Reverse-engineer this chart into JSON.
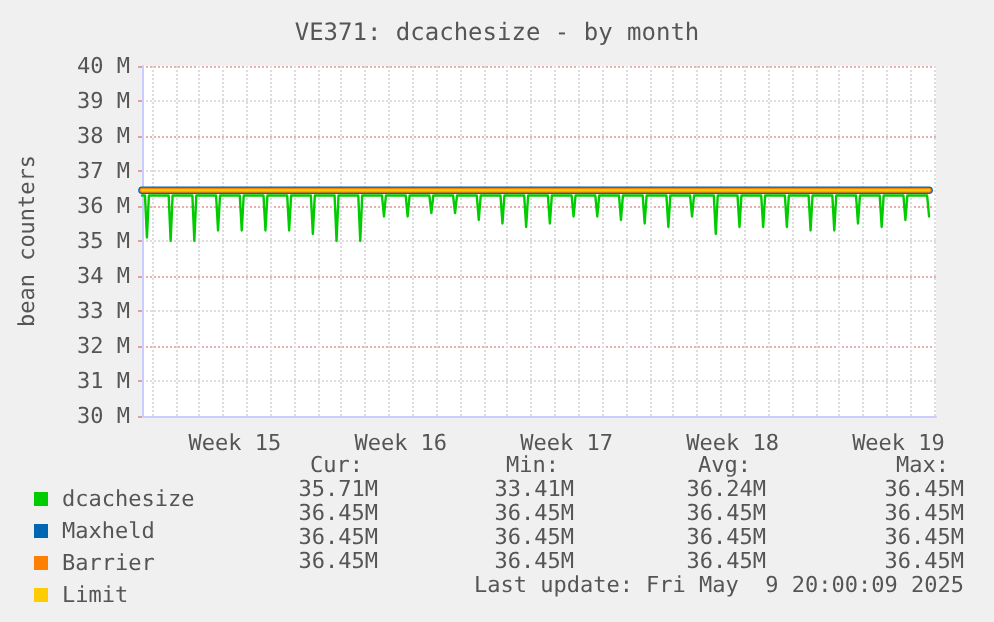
{
  "chart_data": {
    "type": "line",
    "title": "VE371: dcachesize - by month",
    "ylabel": "bean counters",
    "xlim": [
      "2025-04-06T14:00",
      "2025-05-10T02:00"
    ],
    "xticks": [
      {
        "value": "2025-04-10T12:00",
        "label": "Week 15"
      },
      {
        "value": "2025-04-17T12:00",
        "label": "Week 16"
      },
      {
        "value": "2025-04-24T12:00",
        "label": "Week 17"
      },
      {
        "value": "2025-05-01T12:00",
        "label": "Week 18"
      },
      {
        "value": "2025-05-08T12:00",
        "label": "Week 19"
      }
    ],
    "ylim": [
      30,
      40
    ],
    "yticks": [
      {
        "value": 30,
        "label": "30 M"
      },
      {
        "value": 31,
        "label": "31 M"
      },
      {
        "value": 32,
        "label": "32 M"
      },
      {
        "value": 33,
        "label": "33 M"
      },
      {
        "value": 34,
        "label": "34 M"
      },
      {
        "value": 35,
        "label": "35 M"
      },
      {
        "value": 36,
        "label": "36 M"
      },
      {
        "value": 37,
        "label": "37 M"
      },
      {
        "value": 38,
        "label": "38 M"
      },
      {
        "value": 39,
        "label": "39 M"
      },
      {
        "value": 40,
        "label": "40 M"
      }
    ],
    "grid": true,
    "legend": "bottom left",
    "marker": "none",
    "line_style": "solid",
    "series": [
      {
        "name": "dcachesize",
        "color": "#00cc00",
        "x": [
          "2025-04-06T14:00",
          "2025-04-06T17:00",
          "2025-04-06T19:00",
          "2025-04-06T21:00",
          "2025-04-07T17:00",
          "2025-04-07T19:00",
          "2025-04-07T21:00",
          "2025-04-08T17:00",
          "2025-04-08T19:00",
          "2025-04-08T21:00",
          "2025-04-09T17:00",
          "2025-04-09T19:00",
          "2025-04-09T21:00",
          "2025-04-10T17:00",
          "2025-04-10T19:00",
          "2025-04-10T21:00",
          "2025-04-11T17:00",
          "2025-04-11T19:00",
          "2025-04-11T21:00",
          "2025-04-12T17:00",
          "2025-04-12T19:00",
          "2025-04-12T21:00",
          "2025-04-13T17:00",
          "2025-04-13T19:00",
          "2025-04-13T21:00",
          "2025-04-14T17:00",
          "2025-04-14T19:00",
          "2025-04-14T21:00",
          "2025-04-15T17:00",
          "2025-04-15T19:00",
          "2025-04-15T21:00",
          "2025-04-16T17:00",
          "2025-04-16T19:00",
          "2025-04-16T21:00",
          "2025-04-17T17:00",
          "2025-04-17T19:00",
          "2025-04-17T21:00",
          "2025-04-18T17:00",
          "2025-04-18T19:00",
          "2025-04-18T21:00",
          "2025-04-19T17:00",
          "2025-04-19T19:00",
          "2025-04-19T21:00",
          "2025-04-20T17:00",
          "2025-04-20T19:00",
          "2025-04-20T21:00",
          "2025-04-21T17:00",
          "2025-04-21T19:00",
          "2025-04-21T21:00",
          "2025-04-22T17:00",
          "2025-04-22T19:00",
          "2025-04-22T21:00",
          "2025-04-23T17:00",
          "2025-04-23T19:00",
          "2025-04-23T21:00",
          "2025-04-24T17:00",
          "2025-04-24T19:00",
          "2025-04-24T21:00",
          "2025-04-25T17:00",
          "2025-04-25T19:00",
          "2025-04-25T21:00",
          "2025-04-26T17:00",
          "2025-04-26T19:00",
          "2025-04-26T21:00",
          "2025-04-27T17:00",
          "2025-04-27T19:00",
          "2025-04-27T21:00",
          "2025-04-28T17:00",
          "2025-04-28T19:00",
          "2025-04-28T21:00",
          "2025-04-29T17:00",
          "2025-04-29T19:00",
          "2025-04-29T21:00",
          "2025-04-30T17:00",
          "2025-04-30T19:00",
          "2025-04-30T21:00",
          "2025-05-01T17:00",
          "2025-05-01T19:00",
          "2025-05-01T21:00",
          "2025-05-02T17:00",
          "2025-05-02T19:00",
          "2025-05-02T21:00",
          "2025-05-03T17:00",
          "2025-05-03T19:00",
          "2025-05-03T21:00",
          "2025-05-04T17:00",
          "2025-05-04T19:00",
          "2025-05-04T21:00",
          "2025-05-05T17:00",
          "2025-05-05T19:00",
          "2025-05-05T21:00",
          "2025-05-06T17:00",
          "2025-05-06T19:00",
          "2025-05-06T21:00",
          "2025-05-07T17:00",
          "2025-05-07T19:00",
          "2025-05-07T21:00",
          "2025-05-08T17:00",
          "2025-05-08T19:00",
          "2025-05-08T21:00",
          "2025-05-09T17:00",
          "2025-05-09T19:00"
        ],
        "values": [
          36.3,
          36.3,
          35.1,
          36.3,
          36.3,
          35.0,
          36.3,
          36.3,
          35.0,
          36.3,
          36.3,
          35.3,
          36.3,
          36.3,
          35.3,
          36.3,
          36.3,
          35.3,
          36.3,
          36.3,
          35.3,
          36.3,
          36.3,
          35.2,
          36.3,
          36.3,
          35.0,
          36.3,
          36.3,
          35.0,
          36.3,
          36.3,
          35.7,
          36.3,
          36.3,
          35.7,
          36.3,
          36.3,
          35.8,
          36.3,
          36.3,
          35.8,
          36.3,
          36.3,
          35.6,
          36.3,
          36.3,
          35.5,
          36.3,
          36.3,
          35.4,
          36.3,
          36.3,
          35.5,
          36.3,
          36.3,
          35.7,
          36.3,
          36.3,
          35.7,
          36.3,
          36.3,
          35.6,
          36.3,
          36.3,
          35.5,
          36.3,
          36.3,
          35.4,
          36.3,
          36.3,
          35.7,
          36.3,
          36.3,
          35.2,
          36.3,
          36.3,
          35.4,
          36.3,
          36.3,
          35.4,
          36.3,
          36.3,
          35.4,
          36.3,
          36.3,
          35.3,
          36.3,
          36.3,
          35.3,
          36.3,
          36.3,
          35.5,
          36.3,
          36.3,
          35.4,
          36.3,
          36.3,
          35.6,
          36.3,
          36.3,
          35.7
        ]
      },
      {
        "name": "Maxheld",
        "color": "#0066b3",
        "x": [
          "2025-04-06T14:00",
          "2025-05-09T19:00"
        ],
        "values": [
          36.45,
          36.45
        ]
      },
      {
        "name": "Barrier",
        "color": "#ff8000",
        "x": [
          "2025-04-06T14:00",
          "2025-05-09T19:00"
        ],
        "values": [
          36.45,
          36.45
        ]
      },
      {
        "name": "Limit",
        "color": "#ffcc00",
        "x": [
          "2025-04-06T14:00",
          "2025-05-09T19:00"
        ],
        "values": [
          36.45,
          36.45
        ]
      }
    ],
    "annotations": [
      "Cur:",
      "Min:",
      "Avg:",
      "Max:",
      "35.71M",
      "33.41M",
      "36.24M",
      "36.45M",
      "36.45M",
      "36.45M",
      "36.45M",
      "36.45M",
      "36.45M",
      "36.45M",
      "36.45M",
      "36.45M",
      "36.45M",
      "36.45M",
      "36.45M",
      "36.45M",
      "Last update: Fri May  9 20:00:09 2025"
    ]
  }
}
